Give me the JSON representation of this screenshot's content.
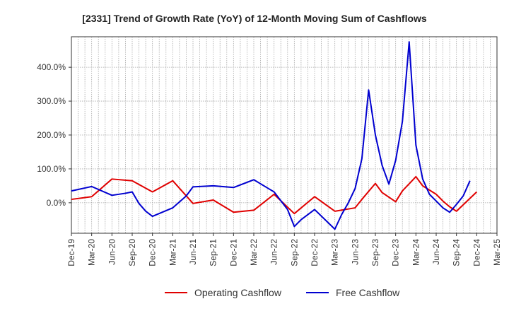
{
  "chart_data": {
    "type": "line",
    "title": "[2331]  Trend of Growth Rate (YoY) of 12-Month Moving Sum of Cashflows",
    "xlabel": "",
    "ylabel": "",
    "ylim": [
      -90,
      490
    ],
    "yticks": [
      0,
      100,
      200,
      300,
      400
    ],
    "ytick_labels": [
      "0.0%",
      "100.0%",
      "200.0%",
      "300.0%",
      "400.0%"
    ],
    "x_range": [
      "2019-12",
      "2025-03"
    ],
    "xtick_labels": [
      "Dec-19",
      "Mar-20",
      "Jun-20",
      "Sep-20",
      "Dec-20",
      "Mar-21",
      "Jun-21",
      "Sep-21",
      "Dec-21",
      "Mar-22",
      "Jun-22",
      "Sep-22",
      "Dec-22",
      "Mar-23",
      "Jun-23",
      "Sep-23",
      "Dec-23",
      "Mar-24",
      "Jun-24",
      "Sep-24",
      "Dec-24",
      "Mar-25"
    ],
    "grid": true,
    "legend_position": "bottom",
    "x": [
      "2019-12",
      "2020-03",
      "2020-06",
      "2020-08",
      "2020-09",
      "2020-10",
      "2020-11",
      "2020-12",
      "2021-03",
      "2021-05",
      "2021-06",
      "2021-09",
      "2021-12",
      "2022-03",
      "2022-06",
      "2022-07",
      "2022-08",
      "2022-09",
      "2022-10",
      "2022-11",
      "2022-12",
      "2023-01",
      "2023-02",
      "2023-03",
      "2023-04",
      "2023-05",
      "2023-06",
      "2023-07",
      "2023-08",
      "2023-09",
      "2023-10",
      "2023-11",
      "2023-12",
      "2024-01",
      "2024-02",
      "2024-03",
      "2024-04",
      "2024-05",
      "2024-06",
      "2024-07",
      "2024-08",
      "2024-09",
      "2024-10",
      "2024-11",
      "2024-12"
    ],
    "series": [
      {
        "name": "Operating Cashflow",
        "color": "#e00000",
        "values": [
          10,
          18,
          70,
          null,
          65,
          null,
          null,
          32,
          65,
          null,
          -2,
          8,
          -28,
          -22,
          25,
          null,
          null,
          -32,
          null,
          null,
          18,
          null,
          null,
          -25,
          null,
          null,
          -15,
          10,
          null,
          57,
          30,
          null,
          3,
          35,
          null,
          77,
          50,
          null,
          25,
          5,
          -12,
          -25,
          null,
          null,
          32
        ]
      },
      {
        "name": "Free Cashflow",
        "color": "#0000d0",
        "values": [
          35,
          48,
          22,
          28,
          32,
          -2,
          -25,
          -40,
          -15,
          20,
          47,
          50,
          45,
          68,
          32,
          null,
          -20,
          -70,
          -50,
          null,
          -20,
          null,
          null,
          -78,
          -35,
          0,
          42,
          130,
          333,
          200,
          110,
          55,
          125,
          240,
          475,
          170,
          70,
          25,
          5,
          -15,
          -28,
          -5,
          20,
          65,
          null
        ]
      }
    ]
  }
}
